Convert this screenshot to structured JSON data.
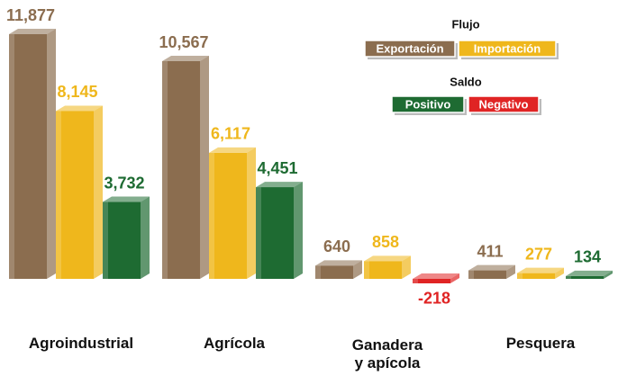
{
  "chart_data": {
    "type": "bar3d",
    "categories": [
      "Agroindustrial",
      "Agrícola",
      "Ganadera\ny apícola",
      "Pesquera"
    ],
    "series": [
      {
        "name": "Exportación",
        "color": "#8b6d4f",
        "values": [
          11877,
          10567,
          640,
          411
        ],
        "value_labels": [
          "11,877",
          "10,567",
          "640",
          "411"
        ]
      },
      {
        "name": "Importación",
        "color": "#efb71c",
        "values": [
          8145,
          6117,
          858,
          277
        ],
        "value_labels": [
          "8,145",
          "6,117",
          "858",
          "277"
        ]
      },
      {
        "name": "Saldo",
        "color": "#1e6b32",
        "values": [
          3732,
          4451,
          -218,
          134
        ],
        "value_labels": [
          "3,732",
          "4,451",
          "-218",
          "134"
        ]
      }
    ],
    "legend": {
      "flujo_title": "Flujo",
      "saldo_title": "Saldo",
      "saldo_entries": [
        {
          "name": "Positivo",
          "color": "#1e6b32"
        },
        {
          "name": "Negativo",
          "color": "#e02424"
        }
      ]
    }
  }
}
